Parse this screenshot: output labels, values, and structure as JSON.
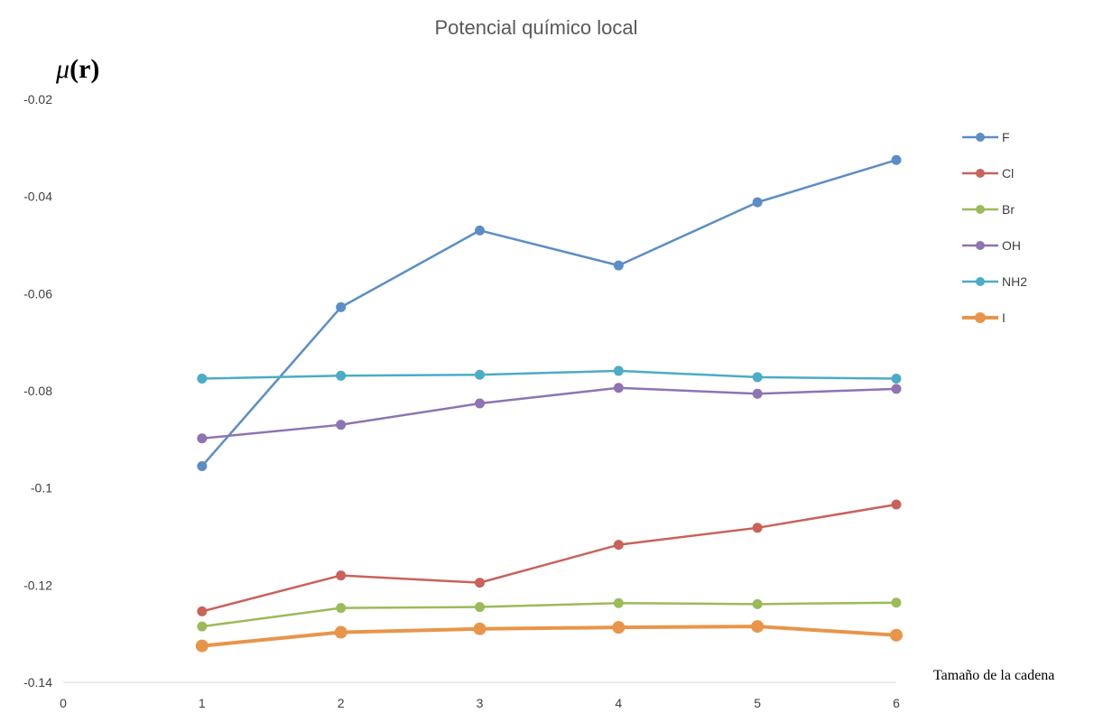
{
  "chart_data": {
    "type": "line",
    "title": "Potencial químico local",
    "ylabel": "μ(r)",
    "ylabel_parts": [
      "μ",
      "(",
      "r",
      ")"
    ],
    "xlabel": "Tamaño de la cadena",
    "x": [
      1,
      2,
      3,
      4,
      5,
      6
    ],
    "xlim": [
      0,
      6
    ],
    "ylim": [
      -0.14,
      -0.02
    ],
    "xticks": [
      "0",
      "1",
      "2",
      "3",
      "4",
      "5",
      "6"
    ],
    "yticks": [
      "-0.02",
      "-0.04",
      "-0.06",
      "-0.08",
      "-0.1",
      "-0.12",
      "-0.14"
    ],
    "grid": false,
    "legend_position": "right",
    "series": [
      {
        "name": "F",
        "color": "#5b8ec6",
        "values": [
          -0.0955,
          -0.0628,
          -0.047,
          -0.0542,
          -0.0412,
          -0.0325
        ]
      },
      {
        "name": "Cl",
        "color": "#c9625a",
        "values": [
          -0.1254,
          -0.118,
          -0.1195,
          -0.1117,
          -0.1082,
          -0.1034
        ]
      },
      {
        "name": "Br",
        "color": "#9bbb59",
        "values": [
          -0.1285,
          -0.1247,
          -0.1245,
          -0.1237,
          -0.1239,
          -0.1236
        ]
      },
      {
        "name": "OH",
        "color": "#8e74b2",
        "values": [
          -0.0898,
          -0.087,
          -0.0826,
          -0.0794,
          -0.0806,
          -0.0796
        ]
      },
      {
        "name": "NH2",
        "color": "#4bacc6",
        "values": [
          -0.0775,
          -0.0769,
          -0.0767,
          -0.0759,
          -0.0772,
          -0.0775
        ]
      },
      {
        "name": "I",
        "color": "#e8954a",
        "values": [
          -0.1325,
          -0.1297,
          -0.129,
          -0.1287,
          -0.1285,
          -0.1303
        ],
        "bold": true
      }
    ]
  }
}
